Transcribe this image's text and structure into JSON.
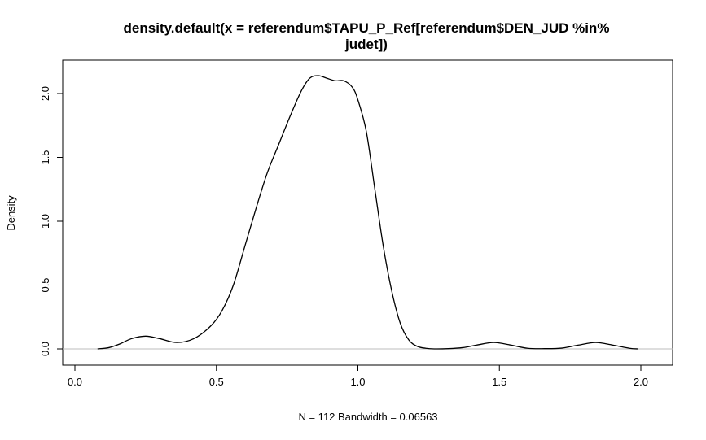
{
  "chart_data": {
    "type": "line",
    "title_lines": [
      "density.default(x = referendum$TAPU_P_Ref[referendum$DEN_JUD %in%",
      "judet])"
    ],
    "xlabel": "N = 112   Bandwidth = 0.06563",
    "ylabel": "Density",
    "xlim": [
      0.0,
      2.0
    ],
    "ylim": [
      0.0,
      2.2
    ],
    "x_ticks": [
      "0.0",
      "0.5",
      "1.0",
      "1.5",
      "2.0"
    ],
    "y_ticks": [
      "0.0",
      "0.5",
      "1.0",
      "1.5",
      "2.0"
    ],
    "baseline_y": 0,
    "grid": false,
    "series": [
      {
        "x": [
          0.08,
          0.12,
          0.16,
          0.2,
          0.25,
          0.3,
          0.36,
          0.42,
          0.48,
          0.52,
          0.56,
          0.6,
          0.64,
          0.68,
          0.72,
          0.76,
          0.8,
          0.83,
          0.86,
          0.89,
          0.92,
          0.95,
          0.98,
          1.0,
          1.03,
          1.06,
          1.09,
          1.12,
          1.15,
          1.18,
          1.21,
          1.24,
          1.27,
          1.32,
          1.37,
          1.42,
          1.48,
          1.54,
          1.6,
          1.66,
          1.72,
          1.78,
          1.84,
          1.9,
          1.96,
          1.99
        ],
        "y": [
          0.0,
          0.01,
          0.04,
          0.08,
          0.1,
          0.08,
          0.05,
          0.08,
          0.18,
          0.3,
          0.5,
          0.8,
          1.1,
          1.38,
          1.6,
          1.82,
          2.02,
          2.12,
          2.14,
          2.12,
          2.1,
          2.1,
          2.05,
          1.95,
          1.7,
          1.25,
          0.8,
          0.45,
          0.2,
          0.07,
          0.02,
          0.005,
          0.0,
          0.002,
          0.01,
          0.03,
          0.05,
          0.03,
          0.005,
          0.002,
          0.006,
          0.03,
          0.05,
          0.03,
          0.005,
          0.0
        ]
      }
    ]
  }
}
